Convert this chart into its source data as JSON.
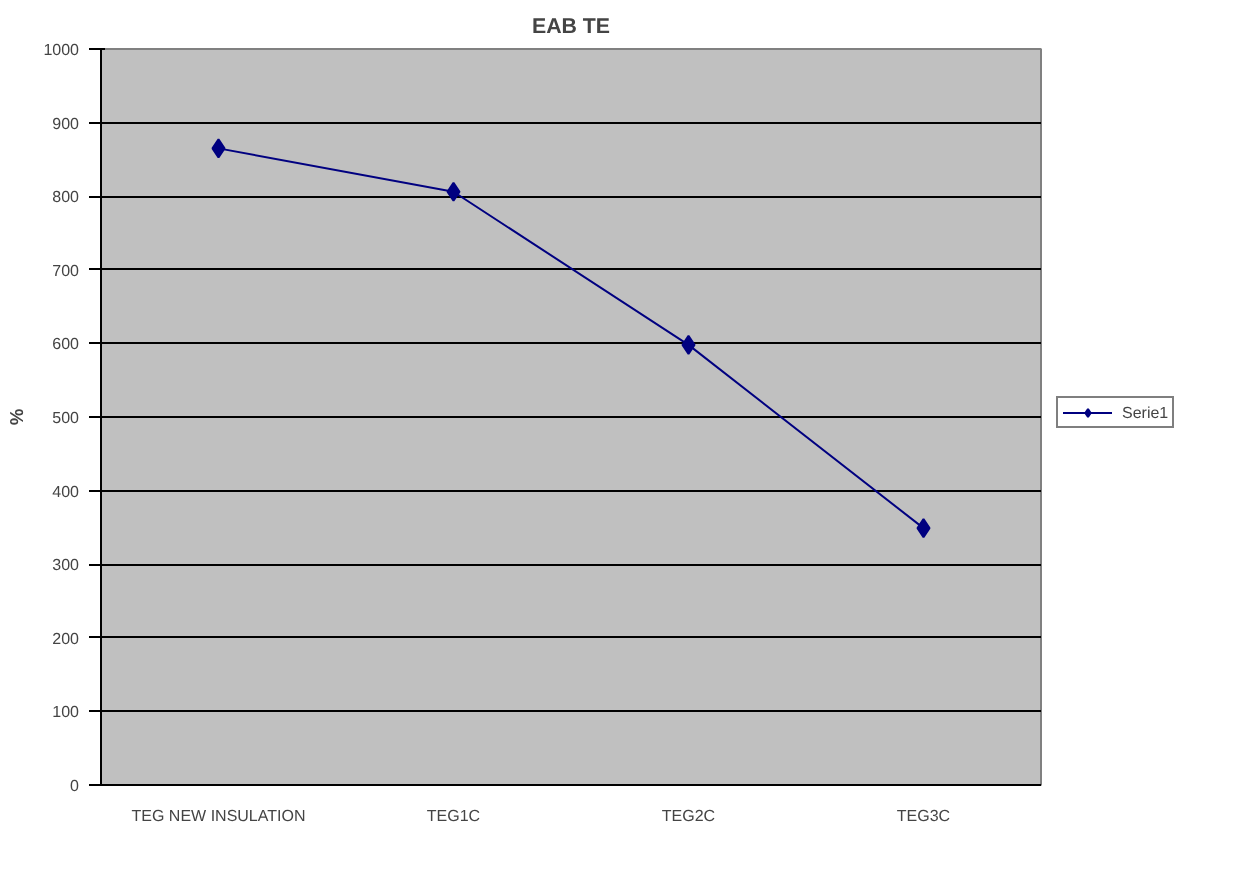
{
  "chart_data": {
    "type": "line",
    "title": "EAB TE",
    "ylabel": "%",
    "categories": [
      "TEG NEW INSULATION",
      "TEG1C",
      "TEG2C",
      "TEG3C"
    ],
    "series": [
      {
        "name": "Serie1",
        "color": "#000080",
        "values": [
          865,
          806,
          598,
          349
        ]
      }
    ],
    "ylim": [
      0,
      1000
    ],
    "yticks": [
      0,
      100,
      200,
      300,
      400,
      500,
      600,
      700,
      800,
      900,
      1000
    ],
    "grid": "y",
    "legend": "right",
    "marker": "diamond",
    "line_style": "solid"
  }
}
